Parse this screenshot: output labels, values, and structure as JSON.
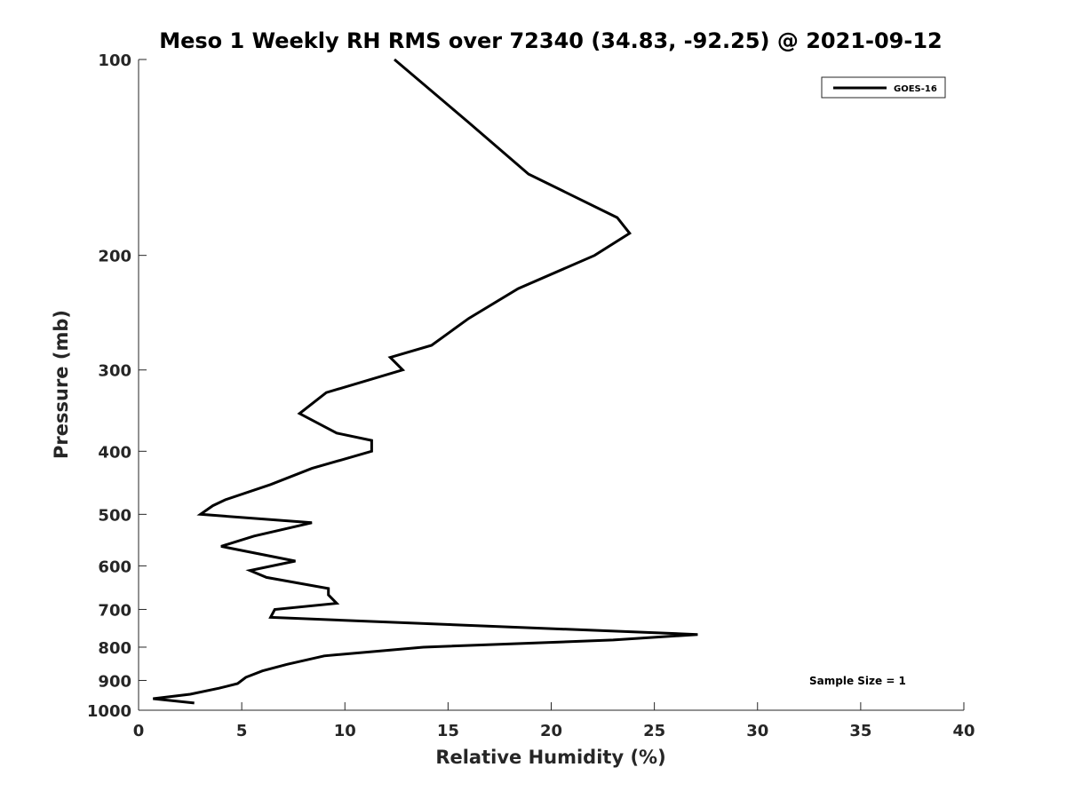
{
  "chart_data": {
    "type": "line",
    "title": "Meso 1 Weekly RH RMS over 72340 (34.83, -92.25) @ 2021-09-12",
    "xlabel": "Relative Humidity (%)",
    "ylabel": "Pressure (mb)",
    "xlim": [
      0,
      40
    ],
    "ylim": [
      100,
      1000
    ],
    "y_scale": "log",
    "y_reversed": true,
    "xticks": [
      0,
      5,
      10,
      15,
      20,
      25,
      30,
      35,
      40
    ],
    "yticks": [
      100,
      200,
      300,
      400,
      500,
      600,
      700,
      800,
      900,
      1000
    ],
    "grid": false,
    "legend_position": "top-right",
    "annotation": "Sample Size = 1",
    "colors": {
      "series": "#000000",
      "axes": "#262626"
    },
    "series": [
      {
        "name": "GOES-16",
        "points": [
          [
            12.4,
            100
          ],
          [
            16.0,
            125
          ],
          [
            18.9,
            150
          ],
          [
            23.2,
            175
          ],
          [
            23.8,
            185
          ],
          [
            22.1,
            200
          ],
          [
            18.4,
            225
          ],
          [
            16.0,
            250
          ],
          [
            14.2,
            275
          ],
          [
            12.2,
            287
          ],
          [
            12.8,
            300
          ],
          [
            9.1,
            325
          ],
          [
            7.8,
            350
          ],
          [
            9.6,
            375
          ],
          [
            11.3,
            385
          ],
          [
            11.3,
            400
          ],
          [
            8.4,
            425
          ],
          [
            6.4,
            450
          ],
          [
            4.2,
            475
          ],
          [
            3.6,
            485
          ],
          [
            3.0,
            500
          ],
          [
            8.4,
            515
          ],
          [
            5.6,
            540
          ],
          [
            4.0,
            560
          ],
          [
            7.6,
            590
          ],
          [
            5.4,
            610
          ],
          [
            6.2,
            625
          ],
          [
            9.2,
            650
          ],
          [
            9.2,
            665
          ],
          [
            9.6,
            685
          ],
          [
            6.6,
            700
          ],
          [
            6.4,
            720
          ],
          [
            27.1,
            765
          ],
          [
            23.0,
            780
          ],
          [
            13.8,
            800
          ],
          [
            9.0,
            825
          ],
          [
            7.2,
            850
          ],
          [
            6.0,
            870
          ],
          [
            5.2,
            890
          ],
          [
            4.8,
            910
          ],
          [
            3.9,
            925
          ],
          [
            2.5,
            945
          ],
          [
            0.7,
            960
          ],
          [
            2.7,
            975
          ]
        ]
      }
    ]
  }
}
